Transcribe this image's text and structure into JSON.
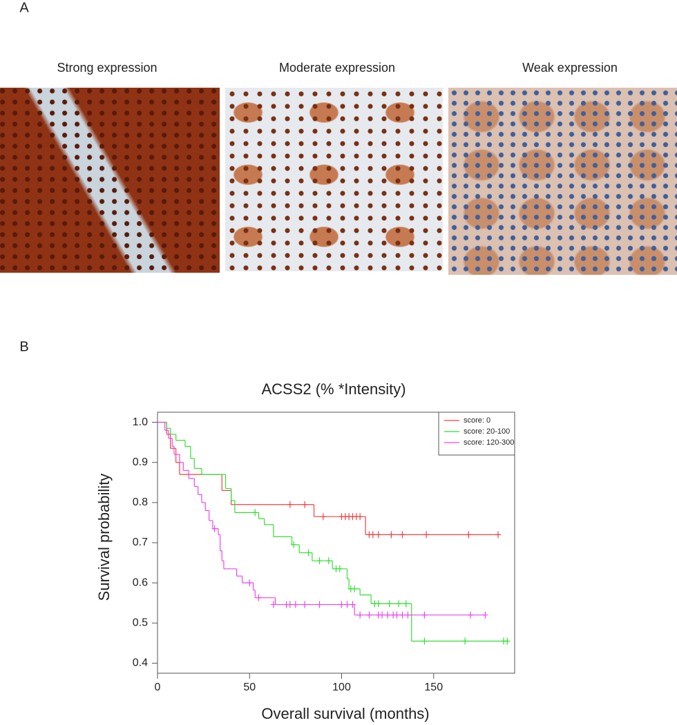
{
  "panel_labels": [
    "A",
    "B"
  ],
  "images": [
    {
      "caption": "Strong expression"
    },
    {
      "caption": "Moderate expression"
    },
    {
      "caption": "Weak expression"
    }
  ],
  "chart_data": {
    "type": "survival",
    "title": "ACSS2 (% *Intensity)",
    "x_label": "Overall survival (months)",
    "y_label": "Survival probability",
    "xlim": [
      0,
      194
    ],
    "ylim": [
      0.375,
      1.025
    ],
    "xticks": [
      0,
      50,
      100,
      150
    ],
    "yticks": [
      {
        "value": 0.4,
        "label": "0.4"
      },
      {
        "value": 0.5,
        "label": "0.5"
      },
      {
        "value": 0.6,
        "label": "0.6"
      },
      {
        "value": 0.7,
        "label": "0.7"
      },
      {
        "value": 0.8,
        "label": "0.8"
      },
      {
        "value": 0.9,
        "label": "0.9"
      },
      {
        "value": 1.0,
        "label": "1.0"
      }
    ],
    "legend": "top-right",
    "series": [
      {
        "name": "score: 0",
        "color": "#f04040",
        "x": [
          0,
          5,
          7,
          10,
          12,
          35,
          40,
          85,
          113
        ],
        "values": [
          1.0,
          0.97,
          0.935,
          0.9,
          0.87,
          0.83,
          0.795,
          0.765,
          0.72
        ],
        "censored": {
          "x": [
            72,
            80,
            90,
            100,
            102,
            104,
            106,
            108,
            110,
            115,
            117,
            120,
            127,
            133,
            146,
            169,
            185
          ],
          "values": [
            0.795,
            0.795,
            0.765,
            0.765,
            0.765,
            0.765,
            0.765,
            0.765,
            0.765,
            0.72,
            0.72,
            0.72,
            0.72,
            0.72,
            0.72,
            0.72,
            0.72
          ]
        }
      },
      {
        "name": "score: 20-100",
        "color": "#33dd33",
        "x": [
          0,
          5,
          7,
          10,
          15,
          18,
          20,
          24,
          37,
          40,
          42,
          55,
          58,
          63,
          73,
          77,
          84,
          95,
          103,
          104,
          110,
          116,
          138
        ],
        "values": [
          1.0,
          0.985,
          0.97,
          0.955,
          0.94,
          0.91,
          0.885,
          0.87,
          0.835,
          0.805,
          0.775,
          0.76,
          0.745,
          0.715,
          0.695,
          0.675,
          0.655,
          0.635,
          0.61,
          0.585,
          0.57,
          0.548,
          0.455
        ],
        "censored": {
          "x": [
            53,
            74,
            82,
            88,
            93,
            97,
            99,
            105,
            107,
            118,
            120,
            126,
            131,
            135,
            145,
            167,
            188,
            190
          ],
          "values": [
            0.775,
            0.695,
            0.675,
            0.655,
            0.655,
            0.635,
            0.635,
            0.585,
            0.585,
            0.548,
            0.548,
            0.548,
            0.548,
            0.548,
            0.455,
            0.455,
            0.455,
            0.455
          ]
        }
      },
      {
        "name": "score: 120-300",
        "color": "#ee44ee",
        "x": [
          0,
          4,
          6,
          8,
          9,
          12,
          14,
          17,
          20,
          22,
          24,
          26,
          28,
          30,
          33,
          34,
          35,
          36,
          43,
          46,
          52,
          53,
          64,
          107
        ],
        "values": [
          1.0,
          0.98,
          0.96,
          0.94,
          0.92,
          0.9,
          0.88,
          0.86,
          0.84,
          0.82,
          0.8,
          0.78,
          0.755,
          0.735,
          0.72,
          0.68,
          0.655,
          0.635,
          0.617,
          0.6,
          0.582,
          0.563,
          0.546,
          0.52
        ],
        "censored": {
          "x": [
            31,
            50,
            55,
            63,
            70,
            72,
            75,
            80,
            88,
            100,
            103,
            106,
            110,
            115,
            120,
            122,
            125,
            128,
            130,
            133,
            136,
            145,
            170,
            178
          ],
          "values": [
            0.735,
            0.6,
            0.563,
            0.546,
            0.546,
            0.546,
            0.546,
            0.546,
            0.546,
            0.546,
            0.546,
            0.546,
            0.52,
            0.52,
            0.52,
            0.52,
            0.52,
            0.52,
            0.52,
            0.52,
            0.52,
            0.52,
            0.52,
            0.52
          ]
        }
      }
    ]
  }
}
